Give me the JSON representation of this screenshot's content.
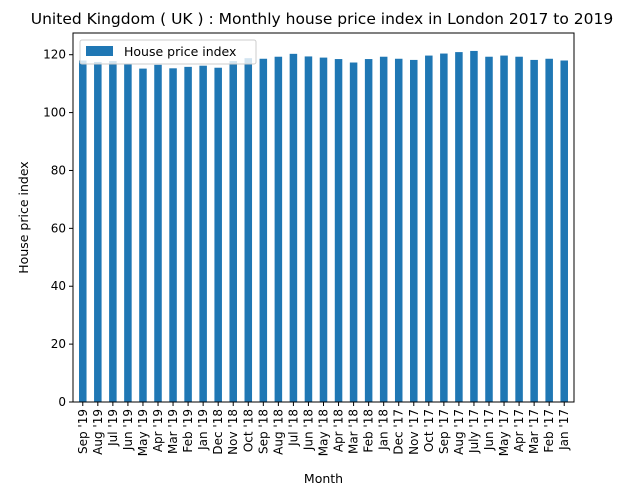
{
  "chart_data": {
    "type": "bar",
    "title": "United Kingdom ( UK ) : Monthly house price index in London 2017 to 2019",
    "xlabel": "Month",
    "ylabel": "House price index",
    "ylim": [
      0,
      127.5
    ],
    "yticks": [
      0,
      20,
      40,
      60,
      80,
      100,
      120
    ],
    "legend_position": "top-left",
    "grid": false,
    "bar_color": "#1f77b4",
    "categories": [
      "Sep '19",
      "Aug '19",
      "Jul '19",
      "Jun '19",
      "May '19",
      "Apr '19",
      "Mar '19",
      "Feb '19",
      "Jan '19",
      "Dec '18",
      "Nov '18",
      "Oct '18",
      "Sep '18",
      "Aug '18",
      "Jul '18",
      "Jun '18",
      "May '18",
      "Apr '18",
      "Mar '18",
      "Feb '18",
      "Jan '18",
      "Dec '17",
      "Nov '17",
      "Oct '17",
      "Sep '17",
      "Aug '17",
      "July '17",
      "Jun '17",
      "May '17",
      "Apr '17",
      "Mar '17",
      "Feb '17",
      "Jan '17"
    ],
    "series": [
      {
        "name": "House price index",
        "values": [
          118.0,
          117.5,
          117.8,
          116.8,
          115.2,
          116.5,
          115.3,
          115.8,
          116.2,
          115.5,
          117.8,
          118.8,
          118.6,
          119.3,
          120.3,
          119.4,
          119.0,
          118.5,
          117.3,
          118.5,
          119.3,
          118.6,
          118.2,
          119.7,
          120.4,
          120.9,
          121.3,
          119.3,
          119.7,
          119.3,
          118.2,
          118.6,
          118.0
        ]
      }
    ]
  }
}
